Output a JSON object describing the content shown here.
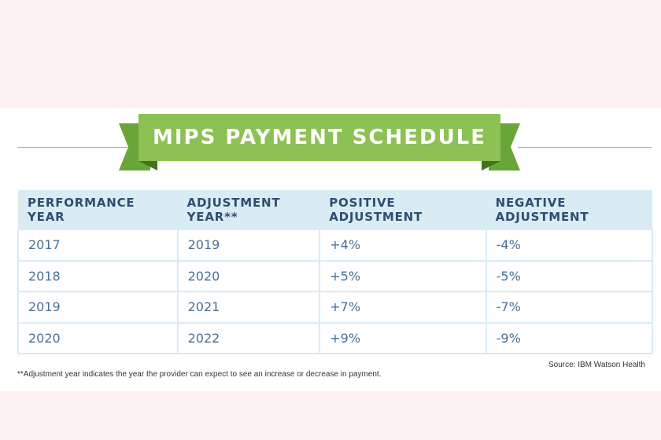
{
  "title": "MIPS PAYMENT SCHEDULE",
  "columns": [
    "PERFORMANCE YEAR",
    "ADJUSTMENT YEAR**",
    "POSITIVE ADJUSTMENT",
    "NEGATIVE ADJUSTMENT"
  ],
  "rows": [
    [
      "2017",
      "2019",
      "+4%",
      "-4%"
    ],
    [
      "2018",
      "2020",
      "+5%",
      "-5%"
    ],
    [
      "2019",
      "2021",
      "+7%",
      "-7%"
    ],
    [
      "2020",
      "2022",
      "+9%",
      "-9%"
    ]
  ],
  "source": "Source: IBM Watson Health",
  "footnote": "**Adjustment year indicates the year the provider can expect to see an increase or decrease in payment.",
  "colors": {
    "banner": "#8cc153",
    "header_bg": "#d9ecf4",
    "header_text": "#2f4d6f",
    "cell_text": "#4a6f96"
  }
}
